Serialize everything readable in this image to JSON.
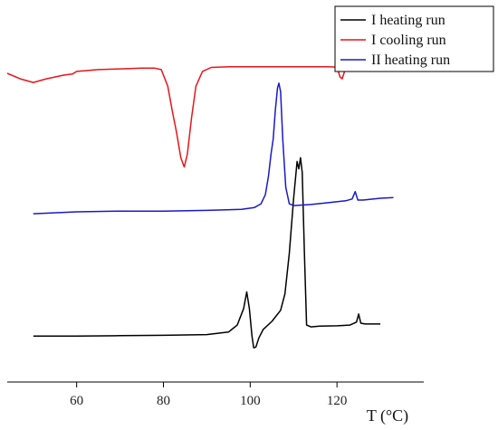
{
  "chart_data": {
    "type": "line",
    "title": "",
    "xlabel": "T (°C)",
    "ylabel": "",
    "xlim": [
      44,
      140
    ],
    "ylim": [
      0,
      100
    ],
    "x_ticks": [
      60,
      80,
      100,
      120
    ],
    "y_axis_visible": false,
    "grid": false,
    "legend_position": "top-right",
    "series": [
      {
        "name": "I heating run",
        "color": "#000000",
        "points": [
          [
            50,
            12.5
          ],
          [
            60,
            12.5
          ],
          [
            70,
            12.6
          ],
          [
            80,
            12.7
          ],
          [
            90,
            12.9
          ],
          [
            95,
            13.6
          ],
          [
            97,
            15.5
          ],
          [
            98.5,
            20
          ],
          [
            99.2,
            24.5
          ],
          [
            99.8,
            20
          ],
          [
            100.4,
            12.5
          ],
          [
            100.8,
            9.3
          ],
          [
            101.3,
            9.5
          ],
          [
            102,
            12
          ],
          [
            103,
            14.3
          ],
          [
            105,
            16.5
          ],
          [
            107,
            19.5
          ],
          [
            108,
            24
          ],
          [
            109,
            35
          ],
          [
            110,
            50
          ],
          [
            110.8,
            60
          ],
          [
            111.2,
            58
          ],
          [
            111.6,
            61
          ],
          [
            112,
            57
          ],
          [
            112.5,
            35
          ],
          [
            113,
            15.5
          ],
          [
            114,
            15
          ],
          [
            116,
            15.2
          ],
          [
            120,
            15.3
          ],
          [
            123,
            15.5
          ],
          [
            124.5,
            16.3
          ],
          [
            125,
            18.5
          ],
          [
            125.5,
            16
          ],
          [
            126.5,
            15.8
          ],
          [
            130,
            15.8
          ]
        ]
      },
      {
        "name": "I cooling run",
        "color": "#e8151a",
        "points": [
          [
            44,
            84
          ],
          [
            47,
            82.5
          ],
          [
            50,
            81.5
          ],
          [
            53,
            82.5
          ],
          [
            57,
            83.5
          ],
          [
            59,
            83.8
          ],
          [
            60,
            84.5
          ],
          [
            65,
            85
          ],
          [
            70,
            85.2
          ],
          [
            75,
            85.4
          ],
          [
            78,
            85.4
          ],
          [
            79.5,
            85
          ],
          [
            81,
            80.5
          ],
          [
            82,
            74
          ],
          [
            83,
            68
          ],
          [
            84,
            61
          ],
          [
            84.8,
            58.5
          ],
          [
            85.5,
            62
          ],
          [
            86.5,
            72
          ],
          [
            87.5,
            80.5
          ],
          [
            89,
            84.5
          ],
          [
            91,
            85.6
          ],
          [
            95,
            85.8
          ],
          [
            100,
            85.8
          ],
          [
            110,
            85.8
          ],
          [
            118,
            85.8
          ],
          [
            120,
            85.7
          ],
          [
            120.7,
            83
          ],
          [
            121.2,
            82.5
          ],
          [
            122,
            85.5
          ],
          [
            123,
            86
          ],
          [
            125,
            86.2
          ]
        ]
      },
      {
        "name": "II heating run",
        "color": "#1a19c8",
        "points": [
          [
            50,
            45.8
          ],
          [
            60,
            46.3
          ],
          [
            70,
            46.5
          ],
          [
            80,
            46.5
          ],
          [
            90,
            46.7
          ],
          [
            98,
            47
          ],
          [
            101,
            47.5
          ],
          [
            102.5,
            48.5
          ],
          [
            103.5,
            51
          ],
          [
            104.2,
            56
          ],
          [
            104.8,
            62
          ],
          [
            105.3,
            66
          ],
          [
            105.8,
            74
          ],
          [
            106.3,
            80
          ],
          [
            106.6,
            81.3
          ],
          [
            107,
            79
          ],
          [
            107.5,
            66
          ],
          [
            108.2,
            53
          ],
          [
            109,
            48.5
          ],
          [
            110,
            48
          ],
          [
            114,
            48.3
          ],
          [
            118,
            48.8
          ],
          [
            122,
            49.3
          ],
          [
            123.5,
            49.8
          ],
          [
            124.2,
            51.8
          ],
          [
            124.8,
            49.5
          ],
          [
            126,
            49.5
          ],
          [
            130,
            50
          ],
          [
            133,
            50.2
          ]
        ]
      }
    ]
  }
}
